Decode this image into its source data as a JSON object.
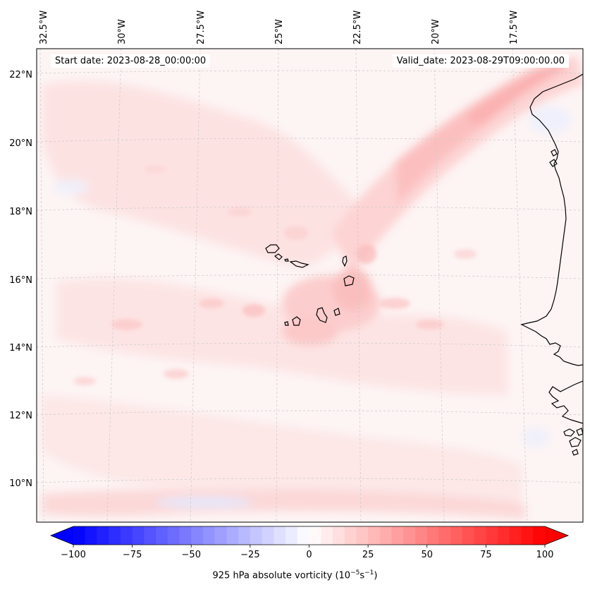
{
  "header": {
    "start_date": "Start date: 2023-08-28_00:00:00",
    "valid_date": "Valid_date: 2023-08-29T09:00:00.00"
  },
  "axes": {
    "lon_labels": [
      "32.5°W",
      "30°W",
      "27.5°W",
      "25°W",
      "22.5°W",
      "20°W",
      "17.5°W"
    ],
    "lat_labels": [
      "22°N",
      "20°N",
      "18°N",
      "16°N",
      "14°N",
      "12°N",
      "10°N"
    ]
  },
  "colorbar": {
    "title": "925 hPa absolute vorticity (10",
    "title_exp": "−5",
    "title_unit": "s",
    "title_unit_exp": "−1",
    "title_close": ")",
    "ticks": [
      "−100",
      "−75",
      "−50",
      "−25",
      "0",
      "25",
      "50",
      "75",
      "100"
    ],
    "tick_values": [
      -100,
      -75,
      -50,
      -25,
      0,
      25,
      50,
      75,
      100
    ],
    "range": [
      -100,
      100
    ],
    "levels": 41,
    "cmap": "bwr",
    "colors": {
      "min": "#0000ff",
      "mid": "#ffffff",
      "max": "#ff0000"
    }
  },
  "map": {
    "background": "#fdf3f3",
    "coast_color": "#000000",
    "grid_color": "#c8c8c8"
  }
}
